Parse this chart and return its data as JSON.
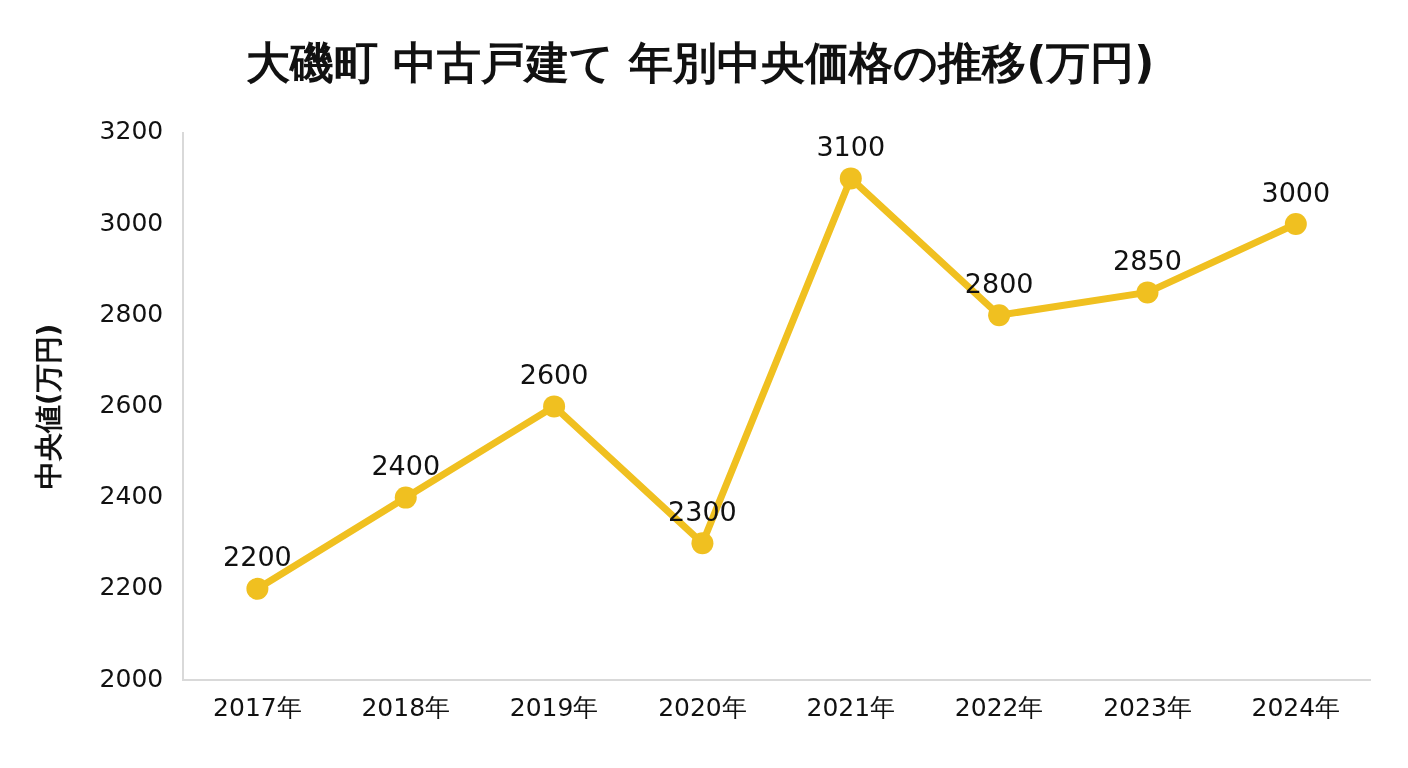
{
  "chart_data": {
    "type": "line",
    "title": "大磯町 中古戸建て 年別中央価格の推移(万円)",
    "ylabel": "中央値(万円)",
    "categories": [
      "2017年",
      "2018年",
      "2019年",
      "2020年",
      "2021年",
      "2022年",
      "2023年",
      "2024年"
    ],
    "series": [
      {
        "color": "#f0c020",
        "values": [
          2200,
          2400,
          2600,
          2300,
          3100,
          2800,
          2850,
          3000
        ]
      }
    ],
    "ylim": [
      2000,
      3200
    ],
    "yticks": [
      2000,
      2200,
      2400,
      2600,
      2800,
      3000,
      3200
    ],
    "grid": false,
    "legend": false,
    "marker": "circle",
    "line_style": "solid",
    "data_labels": true
  }
}
